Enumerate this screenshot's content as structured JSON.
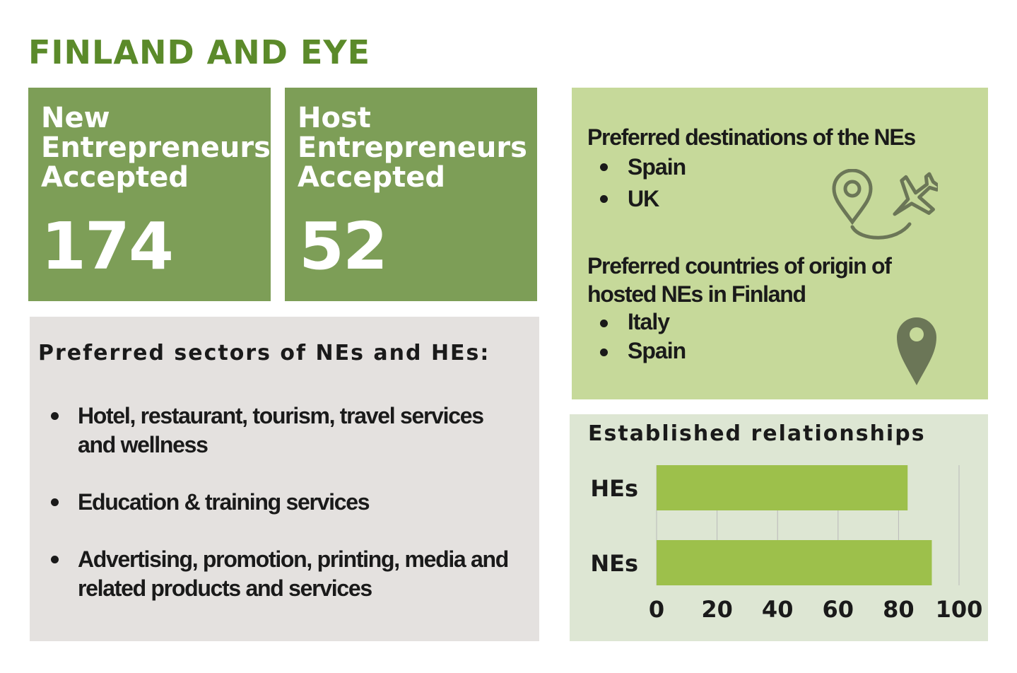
{
  "title": "FINLAND AND EYE",
  "cards": {
    "new_entrepreneurs": {
      "label": "New\nEntrepreneurs\nAccepted",
      "value": "174"
    },
    "host_entrepreneurs": {
      "label": "Host\nEntrepreneurs\nAccepted",
      "value": "52"
    }
  },
  "sectors": {
    "heading": "Preferred sectors of NEs and HEs:",
    "items": [
      "Hotel, restaurant, tourism, travel services and wellness",
      "Education & training services",
      "Advertising, promotion, printing, media and related products and services"
    ]
  },
  "destinations": {
    "heading": "Preferred destinations of the  NEs",
    "items": [
      "Spain",
      "UK"
    ]
  },
  "origins": {
    "heading": "Preferred countries of origin of hosted NEs in Finland",
    "items": [
      "Italy",
      "Spain"
    ]
  },
  "relationships": {
    "heading": "Established relationships"
  },
  "icons": [
    "map-pin-icon",
    "airplane-icon",
    "location-pin-icon"
  ],
  "colors": {
    "title_green": "#5b8a2a",
    "card_green": "#7d9e57",
    "light_green_panel": "#c6d99a",
    "bar_green": "#9dc04b",
    "relations_panel": "#dde6d3",
    "sectors_panel": "#e4e1df",
    "icon_gray": "#6b7657"
  },
  "chart_data": {
    "type": "bar",
    "orientation": "horizontal",
    "categories": [
      "HEs",
      "NEs"
    ],
    "values": [
      83,
      91
    ],
    "xlim": [
      0,
      100
    ],
    "xticks": [
      0,
      20,
      40,
      60,
      80,
      100
    ],
    "grid": "vertical"
  }
}
